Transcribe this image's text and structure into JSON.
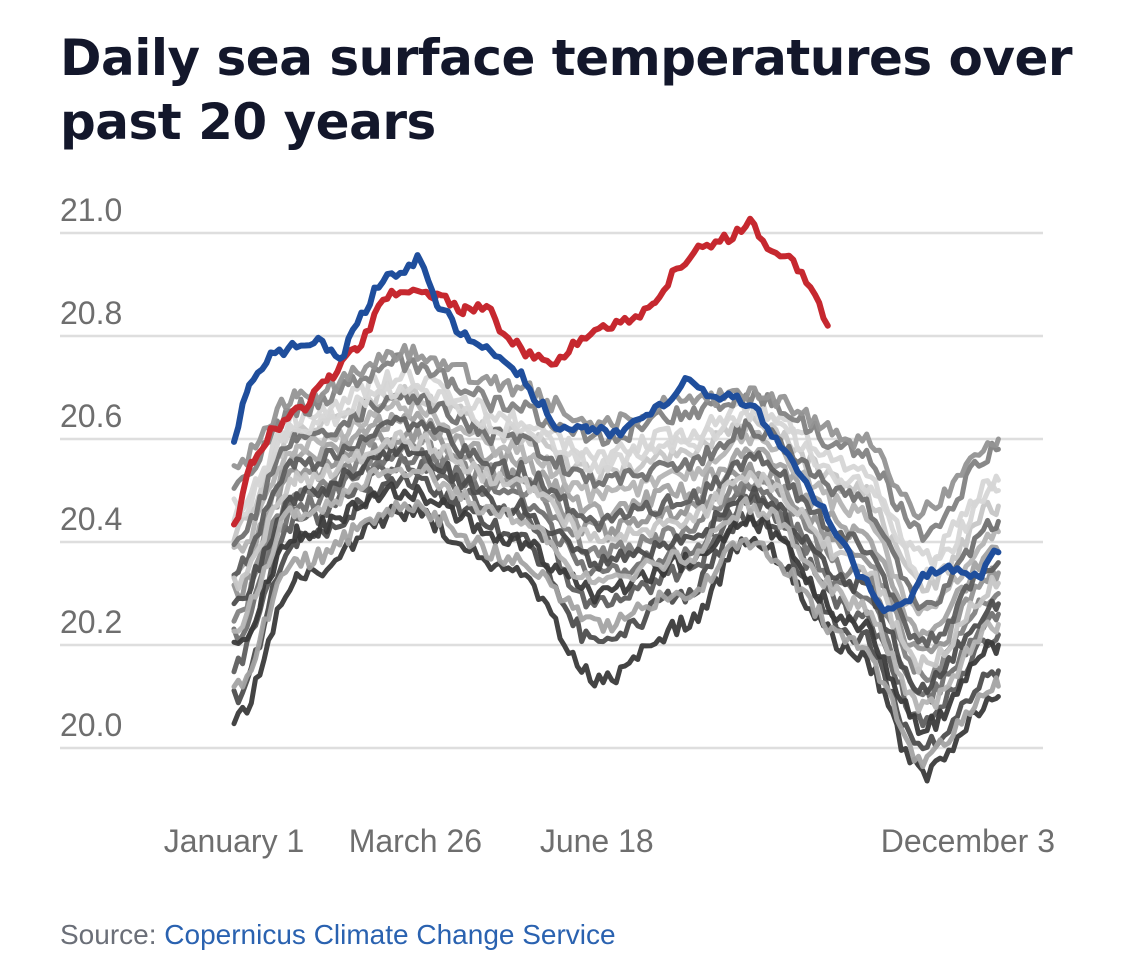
{
  "title": "Daily sea surface temperatures over past 20 years",
  "source": {
    "label": "Source:",
    "link_text": "Copernicus Climate Change Service"
  },
  "colors": {
    "current_year": "#c6282f",
    "previous_year": "#1f4e9c",
    "other_years": [
      "#3a3a3a",
      "#4d4d4d",
      "#5e5e5e",
      "#707070",
      "#828282",
      "#939393",
      "#a3a3a3",
      "#b4b4b4",
      "#c6c6c6",
      "#d6d6d6"
    ],
    "grid": "#dedede",
    "tick_text": "#6e6e6e"
  },
  "chart_data": {
    "type": "line",
    "title": "Daily sea surface temperatures over past 20 years",
    "xlabel": "",
    "ylabel": "",
    "xlim_day_of_year": [
      1,
      365
    ],
    "ylim": [
      19.9,
      21.05
    ],
    "y_ticks": [
      "21.0",
      "20.8",
      "20.6",
      "20.4",
      "20.2",
      "20.0"
    ],
    "x_ticks": [
      {
        "label": "January 1",
        "day": 1
      },
      {
        "label": "March 26",
        "day": 85
      },
      {
        "label": "June 18",
        "day": 169
      },
      {
        "label": "December 3",
        "day": 337
      }
    ],
    "grid": true,
    "legend": "none",
    "highlight_series": [
      {
        "role": "current_year",
        "points": [
          [
            1,
            20.43
          ],
          [
            10,
            20.56
          ],
          [
            20,
            20.62
          ],
          [
            32,
            20.66
          ],
          [
            45,
            20.72
          ],
          [
            58,
            20.78
          ],
          [
            72,
            20.88
          ],
          [
            82,
            20.89
          ],
          [
            95,
            20.88
          ],
          [
            108,
            20.85
          ],
          [
            118,
            20.86
          ],
          [
            128,
            20.79
          ],
          [
            140,
            20.76
          ],
          [
            150,
            20.75
          ],
          [
            160,
            20.79
          ],
          [
            172,
            20.82
          ],
          [
            185,
            20.83
          ],
          [
            196,
            20.86
          ],
          [
            206,
            20.93
          ],
          [
            218,
            20.97
          ],
          [
            230,
            20.99
          ],
          [
            240,
            21.02
          ],
          [
            248,
            20.97
          ],
          [
            258,
            20.95
          ],
          [
            268,
            20.9
          ],
          [
            276,
            20.82
          ]
        ]
      },
      {
        "role": "previous_year",
        "points": [
          [
            1,
            20.6
          ],
          [
            8,
            20.7
          ],
          [
            18,
            20.76
          ],
          [
            30,
            20.78
          ],
          [
            40,
            20.79
          ],
          [
            50,
            20.76
          ],
          [
            60,
            20.84
          ],
          [
            70,
            20.91
          ],
          [
            80,
            20.93
          ],
          [
            87,
            20.95
          ],
          [
            96,
            20.86
          ],
          [
            108,
            20.8
          ],
          [
            120,
            20.77
          ],
          [
            132,
            20.73
          ],
          [
            142,
            20.67
          ],
          [
            152,
            20.62
          ],
          [
            165,
            20.62
          ],
          [
            178,
            20.61
          ],
          [
            190,
            20.64
          ],
          [
            200,
            20.67
          ],
          [
            212,
            20.72
          ],
          [
            222,
            20.68
          ],
          [
            232,
            20.68
          ],
          [
            242,
            20.66
          ],
          [
            252,
            20.6
          ],
          [
            262,
            20.54
          ],
          [
            272,
            20.47
          ],
          [
            282,
            20.4
          ],
          [
            292,
            20.33
          ],
          [
            302,
            20.27
          ],
          [
            312,
            20.28
          ],
          [
            322,
            20.34
          ],
          [
            332,
            20.35
          ],
          [
            345,
            20.33
          ],
          [
            355,
            20.38
          ]
        ]
      }
    ],
    "other_years": [
      {
        "points": [
          [
            1,
            20.05
          ],
          [
            30,
            20.33
          ],
          [
            80,
            20.46
          ],
          [
            130,
            20.34
          ],
          [
            170,
            20.13
          ],
          [
            210,
            20.24
          ],
          [
            240,
            20.41
          ],
          [
            290,
            20.18
          ],
          [
            320,
            19.95
          ],
          [
            355,
            20.1
          ]
        ]
      },
      {
        "points": [
          [
            1,
            20.1
          ],
          [
            30,
            20.4
          ],
          [
            80,
            20.52
          ],
          [
            130,
            20.42
          ],
          [
            170,
            20.2
          ],
          [
            210,
            20.3
          ],
          [
            240,
            20.45
          ],
          [
            290,
            20.22
          ],
          [
            320,
            20.0
          ],
          [
            355,
            20.15
          ]
        ]
      },
      {
        "points": [
          [
            1,
            20.16
          ],
          [
            30,
            20.44
          ],
          [
            80,
            20.55
          ],
          [
            130,
            20.46
          ],
          [
            170,
            20.28
          ],
          [
            210,
            20.34
          ],
          [
            240,
            20.48
          ],
          [
            290,
            20.26
          ],
          [
            320,
            20.06
          ],
          [
            355,
            20.22
          ]
        ]
      },
      {
        "points": [
          [
            1,
            20.22
          ],
          [
            30,
            20.47
          ],
          [
            80,
            20.57
          ],
          [
            130,
            20.49
          ],
          [
            170,
            20.34
          ],
          [
            210,
            20.38
          ],
          [
            240,
            20.5
          ],
          [
            290,
            20.3
          ],
          [
            320,
            20.1
          ],
          [
            355,
            20.26
          ]
        ]
      },
      {
        "points": [
          [
            1,
            20.26
          ],
          [
            30,
            20.5
          ],
          [
            80,
            20.59
          ],
          [
            130,
            20.51
          ],
          [
            170,
            20.38
          ],
          [
            210,
            20.42
          ],
          [
            240,
            20.52
          ],
          [
            290,
            20.34
          ],
          [
            320,
            20.14
          ],
          [
            355,
            20.3
          ]
        ]
      },
      {
        "points": [
          [
            1,
            20.3
          ],
          [
            30,
            20.53
          ],
          [
            80,
            20.61
          ],
          [
            130,
            20.53
          ],
          [
            170,
            20.42
          ],
          [
            210,
            20.46
          ],
          [
            240,
            20.54
          ],
          [
            290,
            20.38
          ],
          [
            320,
            20.18
          ],
          [
            355,
            20.34
          ]
        ]
      },
      {
        "points": [
          [
            1,
            20.34
          ],
          [
            30,
            20.56
          ],
          [
            80,
            20.64
          ],
          [
            130,
            20.56
          ],
          [
            170,
            20.46
          ],
          [
            210,
            20.5
          ],
          [
            240,
            20.57
          ],
          [
            290,
            20.42
          ],
          [
            320,
            20.22
          ],
          [
            355,
            20.38
          ]
        ]
      },
      {
        "points": [
          [
            1,
            20.38
          ],
          [
            30,
            20.58
          ],
          [
            80,
            20.66
          ],
          [
            130,
            20.58
          ],
          [
            170,
            20.49
          ],
          [
            210,
            20.53
          ],
          [
            240,
            20.6
          ],
          [
            290,
            20.46
          ],
          [
            320,
            20.26
          ],
          [
            355,
            20.42
          ]
        ]
      },
      {
        "points": [
          [
            1,
            20.42
          ],
          [
            30,
            20.61
          ],
          [
            80,
            20.69
          ],
          [
            130,
            20.61
          ],
          [
            170,
            20.53
          ],
          [
            210,
            20.57
          ],
          [
            240,
            20.63
          ],
          [
            290,
            20.5
          ],
          [
            320,
            20.31
          ],
          [
            355,
            20.47
          ]
        ]
      },
      {
        "points": [
          [
            1,
            20.45
          ],
          [
            30,
            20.64
          ],
          [
            80,
            20.72
          ],
          [
            130,
            20.64
          ],
          [
            170,
            20.57
          ],
          [
            210,
            20.61
          ],
          [
            240,
            20.66
          ],
          [
            290,
            20.55
          ],
          [
            320,
            20.37
          ],
          [
            355,
            20.52
          ]
        ]
      },
      {
        "points": [
          [
            1,
            20.2
          ],
          [
            30,
            20.42
          ],
          [
            80,
            20.5
          ],
          [
            130,
            20.4
          ],
          [
            170,
            20.3
          ],
          [
            210,
            20.36
          ],
          [
            240,
            20.44
          ],
          [
            290,
            20.24
          ],
          [
            320,
            20.04
          ],
          [
            355,
            20.2
          ]
        ]
      },
      {
        "points": [
          [
            1,
            20.28
          ],
          [
            30,
            20.49
          ],
          [
            80,
            20.58
          ],
          [
            130,
            20.47
          ],
          [
            170,
            20.36
          ],
          [
            210,
            20.4
          ],
          [
            240,
            20.49
          ],
          [
            290,
            20.32
          ],
          [
            320,
            20.12
          ],
          [
            355,
            20.28
          ]
        ]
      },
      {
        "points": [
          [
            1,
            20.35
          ],
          [
            30,
            20.55
          ],
          [
            80,
            20.63
          ],
          [
            130,
            20.54
          ],
          [
            170,
            20.44
          ],
          [
            210,
            20.48
          ],
          [
            240,
            20.56
          ],
          [
            290,
            20.4
          ],
          [
            320,
            20.2
          ],
          [
            355,
            20.36
          ]
        ]
      },
      {
        "points": [
          [
            1,
            20.4
          ],
          [
            30,
            20.6
          ],
          [
            80,
            20.68
          ],
          [
            130,
            20.6
          ],
          [
            170,
            20.52
          ],
          [
            210,
            20.55
          ],
          [
            240,
            20.62
          ],
          [
            290,
            20.48
          ],
          [
            320,
            20.28
          ],
          [
            355,
            20.44
          ]
        ]
      },
      {
        "points": [
          [
            1,
            20.5
          ],
          [
            30,
            20.66
          ],
          [
            80,
            20.75
          ],
          [
            130,
            20.66
          ],
          [
            170,
            20.6
          ],
          [
            210,
            20.65
          ],
          [
            240,
            20.68
          ],
          [
            290,
            20.58
          ],
          [
            320,
            20.42
          ],
          [
            355,
            20.58
          ]
        ]
      },
      {
        "points": [
          [
            1,
            20.55
          ],
          [
            30,
            20.68
          ],
          [
            80,
            20.77
          ],
          [
            130,
            20.7
          ],
          [
            170,
            20.63
          ],
          [
            210,
            20.67
          ],
          [
            240,
            20.69
          ],
          [
            290,
            20.6
          ],
          [
            320,
            20.46
          ],
          [
            355,
            20.6
          ]
        ]
      },
      {
        "points": [
          [
            1,
            20.12
          ],
          [
            30,
            20.36
          ],
          [
            80,
            20.47
          ],
          [
            130,
            20.37
          ],
          [
            170,
            20.24
          ],
          [
            210,
            20.3
          ],
          [
            240,
            20.4
          ],
          [
            290,
            20.2
          ],
          [
            320,
            19.98
          ],
          [
            355,
            20.12
          ]
        ]
      },
      {
        "points": [
          [
            1,
            20.24
          ],
          [
            30,
            20.46
          ],
          [
            80,
            20.54
          ],
          [
            130,
            20.45
          ],
          [
            170,
            20.32
          ],
          [
            210,
            20.37
          ],
          [
            240,
            20.47
          ],
          [
            290,
            20.28
          ],
          [
            320,
            20.08
          ],
          [
            355,
            20.24
          ]
        ]
      },
      {
        "points": [
          [
            1,
            20.32
          ],
          [
            30,
            20.52
          ],
          [
            80,
            20.6
          ],
          [
            130,
            20.52
          ],
          [
            170,
            20.4
          ],
          [
            210,
            20.44
          ],
          [
            240,
            20.53
          ],
          [
            290,
            20.36
          ],
          [
            320,
            20.16
          ],
          [
            355,
            20.32
          ]
        ]
      },
      {
        "points": [
          [
            1,
            20.47
          ],
          [
            30,
            20.62
          ],
          [
            80,
            20.7
          ],
          [
            130,
            20.62
          ],
          [
            170,
            20.55
          ],
          [
            210,
            20.59
          ],
          [
            240,
            20.65
          ],
          [
            290,
            20.52
          ],
          [
            320,
            20.34
          ],
          [
            355,
            20.5
          ]
        ]
      }
    ]
  }
}
